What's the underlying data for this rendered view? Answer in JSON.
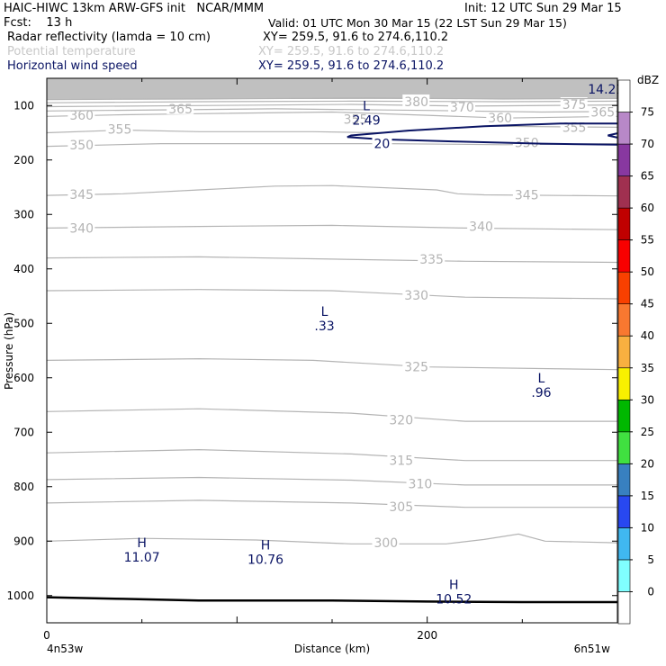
{
  "header": {
    "line1_left": "HAIC-HIWC 13km ARW-GFS init   NCAR/MMM",
    "line1_right": "Init: 12 UTC Sun 29 Mar 15",
    "line2_left": "Fcst:    13 h",
    "line2_right": "Valid: 01 UTC Mon 30 Mar 15 (22 LST Sun 29 Mar 15)",
    "line3_left": "Radar reflectivity (lamda = 10 cm)",
    "line3_right": "XY= 259.5, 91.6 to 274.6,110.2",
    "line4_left": "Potential temperature",
    "line4_right": "XY= 259.5, 91.6 to 274.6,110.2",
    "line5_left": "Horizontal wind speed",
    "line5_right": "XY= 259.5, 91.6 to 274.6,110.2"
  },
  "colors": {
    "theta": "#b4b4b4",
    "wind": "#0a1464",
    "theta_legend": "#c8c8c8",
    "wind_legend": "#0a1464",
    "terrain": "#000000"
  },
  "chart_data": {
    "type": "line",
    "xlabel": "Distance (km)",
    "ylabel": "Pressure (hPa)",
    "xlim": [
      0,
      300
    ],
    "ylim": [
      1050,
      50
    ],
    "x_ticks": [
      0,
      200
    ],
    "x_end_labels": {
      "left": "4n53w",
      "right": "6n51w"
    },
    "y_ticks": [
      100,
      200,
      300,
      400,
      500,
      600,
      700,
      800,
      900,
      1000
    ],
    "theta_contours": [
      {
        "value": 300,
        "points": [
          [
            0,
            900
          ],
          [
            50,
            895
          ],
          [
            110,
            898
          ],
          [
            160,
            905
          ],
          [
            210,
            905
          ],
          [
            230,
            897
          ],
          [
            248,
            887
          ],
          [
            262,
            900
          ],
          [
            300,
            903
          ]
        ],
        "labels": [
          [
            172,
            903
          ]
        ]
      },
      {
        "value": 305,
        "points": [
          [
            0,
            830
          ],
          [
            80,
            825
          ],
          [
            160,
            830
          ],
          [
            220,
            838
          ],
          [
            300,
            838
          ]
        ],
        "labels": [
          [
            180,
            837
          ]
        ]
      },
      {
        "value": 310,
        "points": [
          [
            0,
            787
          ],
          [
            80,
            783
          ],
          [
            160,
            788
          ],
          [
            220,
            797
          ],
          [
            300,
            797
          ]
        ],
        "labels": [
          [
            190,
            795
          ]
        ]
      },
      {
        "value": 315,
        "points": [
          [
            0,
            738
          ],
          [
            80,
            732
          ],
          [
            160,
            740
          ],
          [
            220,
            752
          ],
          [
            300,
            752
          ]
        ],
        "labels": [
          [
            180,
            752
          ]
        ]
      },
      {
        "value": 320,
        "points": [
          [
            0,
            662
          ],
          [
            80,
            657
          ],
          [
            160,
            665
          ],
          [
            220,
            680
          ],
          [
            300,
            680
          ]
        ],
        "labels": [
          [
            180,
            677
          ]
        ]
      },
      {
        "value": 325,
        "points": [
          [
            0,
            568
          ],
          [
            80,
            565
          ],
          [
            140,
            568
          ],
          [
            200,
            580
          ],
          [
            300,
            585
          ]
        ],
        "labels": [
          [
            188,
            580
          ]
        ]
      },
      {
        "value": 330,
        "points": [
          [
            0,
            440
          ],
          [
            80,
            438
          ],
          [
            150,
            440
          ],
          [
            220,
            452
          ],
          [
            300,
            455
          ]
        ],
        "labels": [
          [
            188,
            448
          ]
        ]
      },
      {
        "value": 335,
        "points": [
          [
            0,
            380
          ],
          [
            80,
            378
          ],
          [
            150,
            382
          ],
          [
            220,
            386
          ],
          [
            300,
            388
          ]
        ],
        "labels": [
          [
            196,
            382
          ]
        ]
      },
      {
        "value": 340,
        "points": [
          [
            0,
            325
          ],
          [
            80,
            322
          ],
          [
            150,
            320
          ],
          [
            220,
            325
          ],
          [
            300,
            328
          ]
        ],
        "labels": [
          [
            12,
            325
          ],
          [
            222,
            322
          ]
        ]
      },
      {
        "value": 345,
        "points": [
          [
            0,
            265
          ],
          [
            40,
            262
          ],
          [
            80,
            255
          ],
          [
            120,
            248
          ],
          [
            150,
            247
          ],
          [
            205,
            255
          ],
          [
            216,
            262
          ],
          [
            230,
            264
          ],
          [
            300,
            266
          ]
        ],
        "labels": [
          [
            12,
            263
          ],
          [
            246,
            264
          ]
        ]
      },
      {
        "value": 350,
        "points": [
          [
            0,
            175
          ],
          [
            60,
            170
          ],
          [
            120,
            170
          ],
          [
            180,
            170
          ],
          [
            240,
            172
          ],
          [
            300,
            170
          ]
        ],
        "labels": [
          [
            12,
            172
          ],
          [
            246,
            168
          ]
        ]
      },
      {
        "value": 355,
        "points": [
          [
            0,
            150
          ],
          [
            40,
            145
          ],
          [
            80,
            148
          ],
          [
            140,
            148
          ],
          [
            175,
            150
          ],
          [
            230,
            138
          ],
          [
            300,
            140
          ]
        ],
        "labels": [
          [
            32,
            143
          ],
          [
            156,
            125
          ],
          [
            271,
            140
          ]
        ]
      },
      {
        "value": 360,
        "points": [
          [
            0,
            120
          ],
          [
            40,
            117
          ],
          [
            80,
            115
          ],
          [
            150,
            112
          ],
          [
            200,
            118
          ],
          [
            240,
            123
          ],
          [
            300,
            120
          ]
        ],
        "labels": [
          [
            12,
            118
          ],
          [
            232,
            123
          ]
        ]
      },
      {
        "value": 365,
        "points": [
          [
            0,
            110
          ],
          [
            60,
            108
          ],
          [
            120,
            106
          ],
          [
            200,
            109
          ],
          [
            260,
            112
          ],
          [
            300,
            111
          ]
        ],
        "labels": [
          [
            64,
            106
          ],
          [
            286,
            112
          ]
        ]
      },
      {
        "value": 370,
        "points": [
          [
            0,
            102
          ],
          [
            80,
            100
          ],
          [
            160,
            98
          ],
          [
            220,
            101
          ],
          [
            300,
            99
          ]
        ],
        "labels": [
          [
            212,
            103
          ]
        ]
      },
      {
        "value": 375,
        "points": [
          [
            0,
            95
          ],
          [
            80,
            93
          ],
          [
            160,
            92
          ],
          [
            240,
            93
          ],
          [
            300,
            92
          ]
        ],
        "labels": [
          [
            271,
            98
          ]
        ]
      },
      {
        "value": 380,
        "points": [
          [
            0,
            89
          ],
          [
            80,
            88
          ],
          [
            170,
            86
          ],
          [
            240,
            88
          ],
          [
            300,
            87
          ]
        ],
        "labels": [
          [
            188,
            93
          ]
        ]
      }
    ],
    "theta_shaded_top": 88,
    "wind_contours": [
      {
        "value": 20,
        "points": [
          [
            300,
            133
          ],
          [
            270,
            133
          ],
          [
            230,
            138
          ],
          [
            190,
            146
          ],
          [
            160,
            155
          ],
          [
            158,
            158
          ],
          [
            175,
            162
          ],
          [
            215,
            166
          ],
          [
            260,
            170
          ],
          [
            300,
            172
          ]
        ],
        "labels": [
          [
            172,
            170
          ]
        ]
      },
      {
        "value": 20,
        "points": [
          [
            300,
            151
          ],
          [
            295,
            155
          ],
          [
            300,
            159
          ]
        ],
        "labels": []
      }
    ],
    "terrain": [
      [
        0,
        1003
      ],
      [
        40,
        1006
      ],
      [
        80,
        1009
      ],
      [
        150,
        1009
      ],
      [
        200,
        1011
      ],
      [
        250,
        1012
      ],
      [
        300,
        1012
      ]
    ],
    "extrema": [
      {
        "type": "L",
        "value": "2.49",
        "x": 168,
        "p": 115
      },
      {
        "type": "L",
        "value": ".33",
        "x": 146,
        "p": 493
      },
      {
        "type": "L",
        "value": ".96",
        "x": 260,
        "p": 615
      },
      {
        "type": "H",
        "value": "11.07",
        "x": 50,
        "p": 918
      },
      {
        "type": "H",
        "value": "10.76",
        "x": 115,
        "p": 922
      },
      {
        "type": "H",
        "value": "10.52",
        "x": 214,
        "p": 995
      },
      {
        "type": "max",
        "value": "14.21",
        "x": 294,
        "p": 70
      }
    ],
    "colorbar": {
      "title": "dBZ",
      "levels": [
        0,
        5,
        10,
        15,
        20,
        25,
        30,
        35,
        40,
        45,
        50,
        55,
        60,
        65,
        70,
        75
      ],
      "colors": [
        "#ffffff",
        "#80ffff",
        "#40b8f0",
        "#2848f0",
        "#3880c0",
        "#40e040",
        "#00b800",
        "#f8f000",
        "#f8b040",
        "#f87830",
        "#f84000",
        "#f80000",
        "#c00000",
        "#a03050",
        "#8838a0",
        "#b888c8",
        "#ffffff"
      ]
    }
  }
}
